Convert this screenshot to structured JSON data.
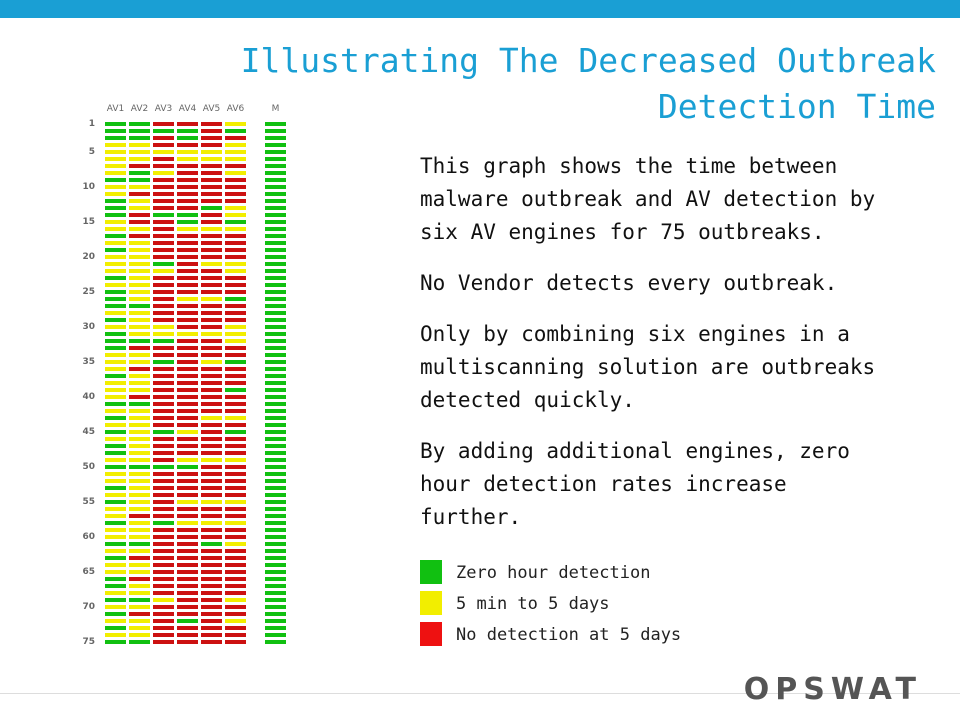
{
  "title": {
    "line1": "Illustrating The Decreased Outbreak",
    "line2": "Detection Time"
  },
  "body": {
    "p1": "This  graph shows the time between malware outbreak and AV detection by six AV engines for 75  outbreaks.",
    "p2": "No Vendor detects every outbreak.",
    "p3": "Only by combining six engines in a multiscanning solution are outbreaks  detected quickly.",
    "p4": "By adding additional engines, zero hour detection rates increase further."
  },
  "legend": [
    {
      "label": "Zero hour detection",
      "color": "#11c011"
    },
    {
      "label": "5 min to 5 days",
      "color": "#f2ee00"
    },
    {
      "label": "No detection at 5 days",
      "color": "#ee1111"
    }
  ],
  "logo": "OPSWAT",
  "colors": {
    "title": "#1a9fd4",
    "G": "#11c011",
    "Y": "#f2ee00",
    "R": "#cc1111"
  },
  "chart_data": {
    "type": "heatmap",
    "columns": [
      "AV1",
      "AV2",
      "AV3",
      "AV4",
      "AV5",
      "AV6",
      "M"
    ],
    "row_tick_labels": [
      "1",
      "5",
      "10",
      "15",
      "20",
      "25",
      "30",
      "35",
      "40",
      "45",
      "50",
      "55",
      "60",
      "65",
      "70",
      "75"
    ],
    "row_tick_values": [
      1,
      5,
      10,
      15,
      20,
      25,
      30,
      35,
      40,
      45,
      50,
      55,
      60,
      65,
      70,
      75
    ],
    "category_legend": {
      "G": "Zero hour detection",
      "Y": "5 min to 5 days",
      "R": "No detection at 5 days"
    },
    "rows": [
      "GGRRRYG",
      "GGGGRGG",
      "GGRGRRG",
      "YYRRRYG",
      "YYYYYYG",
      "YYRYYYG",
      "YRRRRRG",
      "YGYRRYG",
      "GGRRRRG",
      "YYRRRRG",
      "YRRRRRG",
      "GYRRRRG",
      "GYRRGYG",
      "GRGGRYG",
      "YRRGRGG",
      "YYRYYYG",
      "GRRRRRG",
      "YYRRRRG",
      "GYRRRRG",
      "YYRRRRG",
      "YYGRYYG",
      "YYYRRYG",
      "GYRRRRG",
      "YYRRRRG",
      "GYRRRRG",
      "GYRYYGG",
      "GGRRRRG",
      "YYRRRRG",
      "GYRRRRG",
      "YYYRRYG",
      "GYYYYYG",
      "GGGRRYG",
      "GRRRRRG",
      "YYRRRRG",
      "YYGRYGG",
      "YRRRRRG",
      "GYRRRRG",
      "YYRRRRG",
      "YYRRRGG",
      "YRRRRRG",
      "GGRRRRG",
      "YYRRRRG",
      "GYRRYYG",
      "YYRRRRG",
      "GYGYRGG",
      "YYRRRRG",
      "GYRRRRG",
      "GYRRRRG",
      "YYRYYYG",
      "GGGGRRG",
      "YYRRRRG",
      "YYRRRRG",
      "GYRRRRG",
      "YYRRRRG",
      "GYRYYYG",
      "YYRRRRG",
      "YRRRRRG",
      "GYGYYYG",
      "YYRRRRG",
      "YYRRRRG",
      "GGRRGYG",
      "YYRRRRG",
      "GRRRRRG",
      "YYRRRRG",
      "YYRRRRG",
      "GRRRRRG",
      "GYRRRRG",
      "YYRRRRG",
      "GGYRRYG",
      "YYRRRRG",
      "GRRRRRG",
      "YYRGRYG",
      "GYRRRRG",
      "YYRRRRG",
      "GGRRRRG"
    ]
  }
}
